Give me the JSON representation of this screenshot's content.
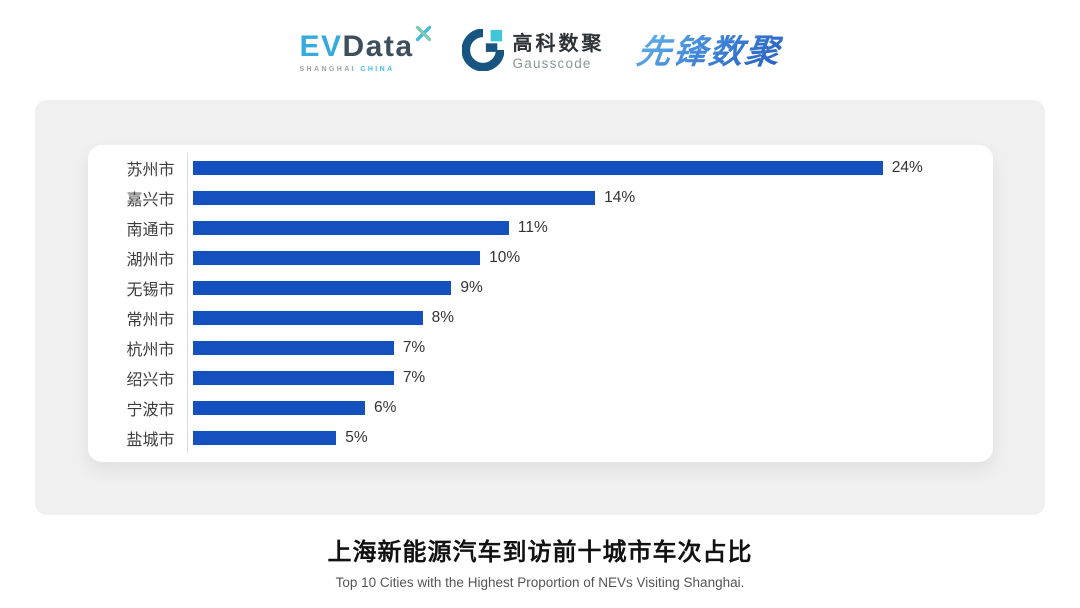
{
  "header": {
    "evdata": {
      "ev": "EV",
      "data": "Data",
      "sub_shanghai": "SHANGHAI",
      "sub_china": "CHINA"
    },
    "gausscode": {
      "cn": "高科数聚",
      "en": "Gausscode"
    },
    "xianfeng": {
      "wordmark": "先锋数聚"
    }
  },
  "chart_data": {
    "type": "bar",
    "orientation": "horizontal",
    "categories": [
      "苏州市",
      "嘉兴市",
      "南通市",
      "湖州市",
      "无锡市",
      "常州市",
      "杭州市",
      "绍兴市",
      "宁波市",
      "盐城市"
    ],
    "values": [
      24,
      14,
      11,
      10,
      9,
      8,
      7,
      7,
      6,
      5
    ],
    "value_labels": [
      "24%",
      "14%",
      "11%",
      "10%",
      "9%",
      "8%",
      "7%",
      "7%",
      "6%",
      "5%"
    ],
    "unit": "%",
    "xlim": [
      0,
      25
    ],
    "grid": false,
    "legend": false,
    "bar_color": "#1450be",
    "axis_line_color": "#d8d8d8",
    "title": "上海新能源汽车到访前十城市车次占比",
    "subtitle": "Top 10 Cities with the Highest Proportion of  NEVs Visiting Shanghai."
  }
}
